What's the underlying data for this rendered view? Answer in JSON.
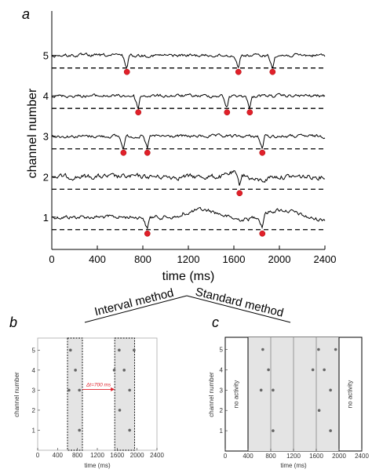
{
  "panel_letters": {
    "a": "a",
    "b": "b",
    "c": "c"
  },
  "method_labels": {
    "interval": "Interval method",
    "standard": "Standard method"
  },
  "chart_data": [
    {
      "id": "a",
      "type": "line",
      "xlabel": "time (ms)",
      "ylabel": "channel number",
      "xlim": [
        0,
        2400
      ],
      "ylim": [
        0.2,
        6.1
      ],
      "xticks": [
        "0",
        "400",
        "800",
        "1200",
        "1600",
        "2000",
        "2400"
      ],
      "yticks": [
        "1",
        "2",
        "3",
        "4",
        "5"
      ],
      "series": [
        {
          "channel": 1,
          "events": [
            840,
            1850
          ]
        },
        {
          "channel": 2,
          "events": [
            1650
          ]
        },
        {
          "channel": 3,
          "events": [
            630,
            840,
            1850
          ]
        },
        {
          "channel": 4,
          "events": [
            760,
            1540,
            1740
          ]
        },
        {
          "channel": 5,
          "events": [
            660,
            1640,
            1940
          ]
        }
      ]
    },
    {
      "id": "b",
      "type": "scatter",
      "xlabel": "time (ms)",
      "ylabel": "channel number",
      "xlim": [
        0,
        2400
      ],
      "ylim": [
        0,
        5.6
      ],
      "xticks": [
        "0",
        "400",
        "800",
        "1200",
        "1600",
        "2000",
        "2400"
      ],
      "yticks": [
        "1",
        "2",
        "3",
        "4",
        "5"
      ],
      "windows": [
        [
          600,
          900
        ],
        [
          1550,
          1950
        ]
      ],
      "annotation": "Δt=700 ms",
      "points": [
        {
          "x": 660,
          "y": 5
        },
        {
          "x": 760,
          "y": 4
        },
        {
          "x": 630,
          "y": 3
        },
        {
          "x": 840,
          "y": 3
        },
        {
          "x": 840,
          "y": 1
        },
        {
          "x": 1640,
          "y": 5
        },
        {
          "x": 1940,
          "y": 5
        },
        {
          "x": 1740,
          "y": 4
        },
        {
          "x": 1540,
          "y": 4
        },
        {
          "x": 1850,
          "y": 3
        },
        {
          "x": 1650,
          "y": 2
        },
        {
          "x": 1850,
          "y": 1
        }
      ]
    },
    {
      "id": "c",
      "type": "scatter",
      "xlabel": "time (ms)",
      "ylabel": "channel number",
      "xlim": [
        0,
        2400
      ],
      "ylim": [
        0,
        5.6
      ],
      "xticks": [
        "0",
        "400",
        "800",
        "1200",
        "1600",
        "2000",
        "2400"
      ],
      "yticks": [
        "1",
        "2",
        "3",
        "4",
        "5"
      ],
      "bins": [
        400,
        800,
        1200,
        1600,
        2000
      ],
      "shaded": [
        400,
        2000
      ],
      "side_text": "no activity",
      "points": [
        {
          "x": 660,
          "y": 5
        },
        {
          "x": 760,
          "y": 4
        },
        {
          "x": 630,
          "y": 3
        },
        {
          "x": 840,
          "y": 3
        },
        {
          "x": 840,
          "y": 1
        },
        {
          "x": 1640,
          "y": 5
        },
        {
          "x": 1940,
          "y": 5
        },
        {
          "x": 1740,
          "y": 4
        },
        {
          "x": 1540,
          "y": 4
        },
        {
          "x": 1850,
          "y": 3
        },
        {
          "x": 1650,
          "y": 2
        },
        {
          "x": 1850,
          "y": 1
        }
      ]
    }
  ]
}
